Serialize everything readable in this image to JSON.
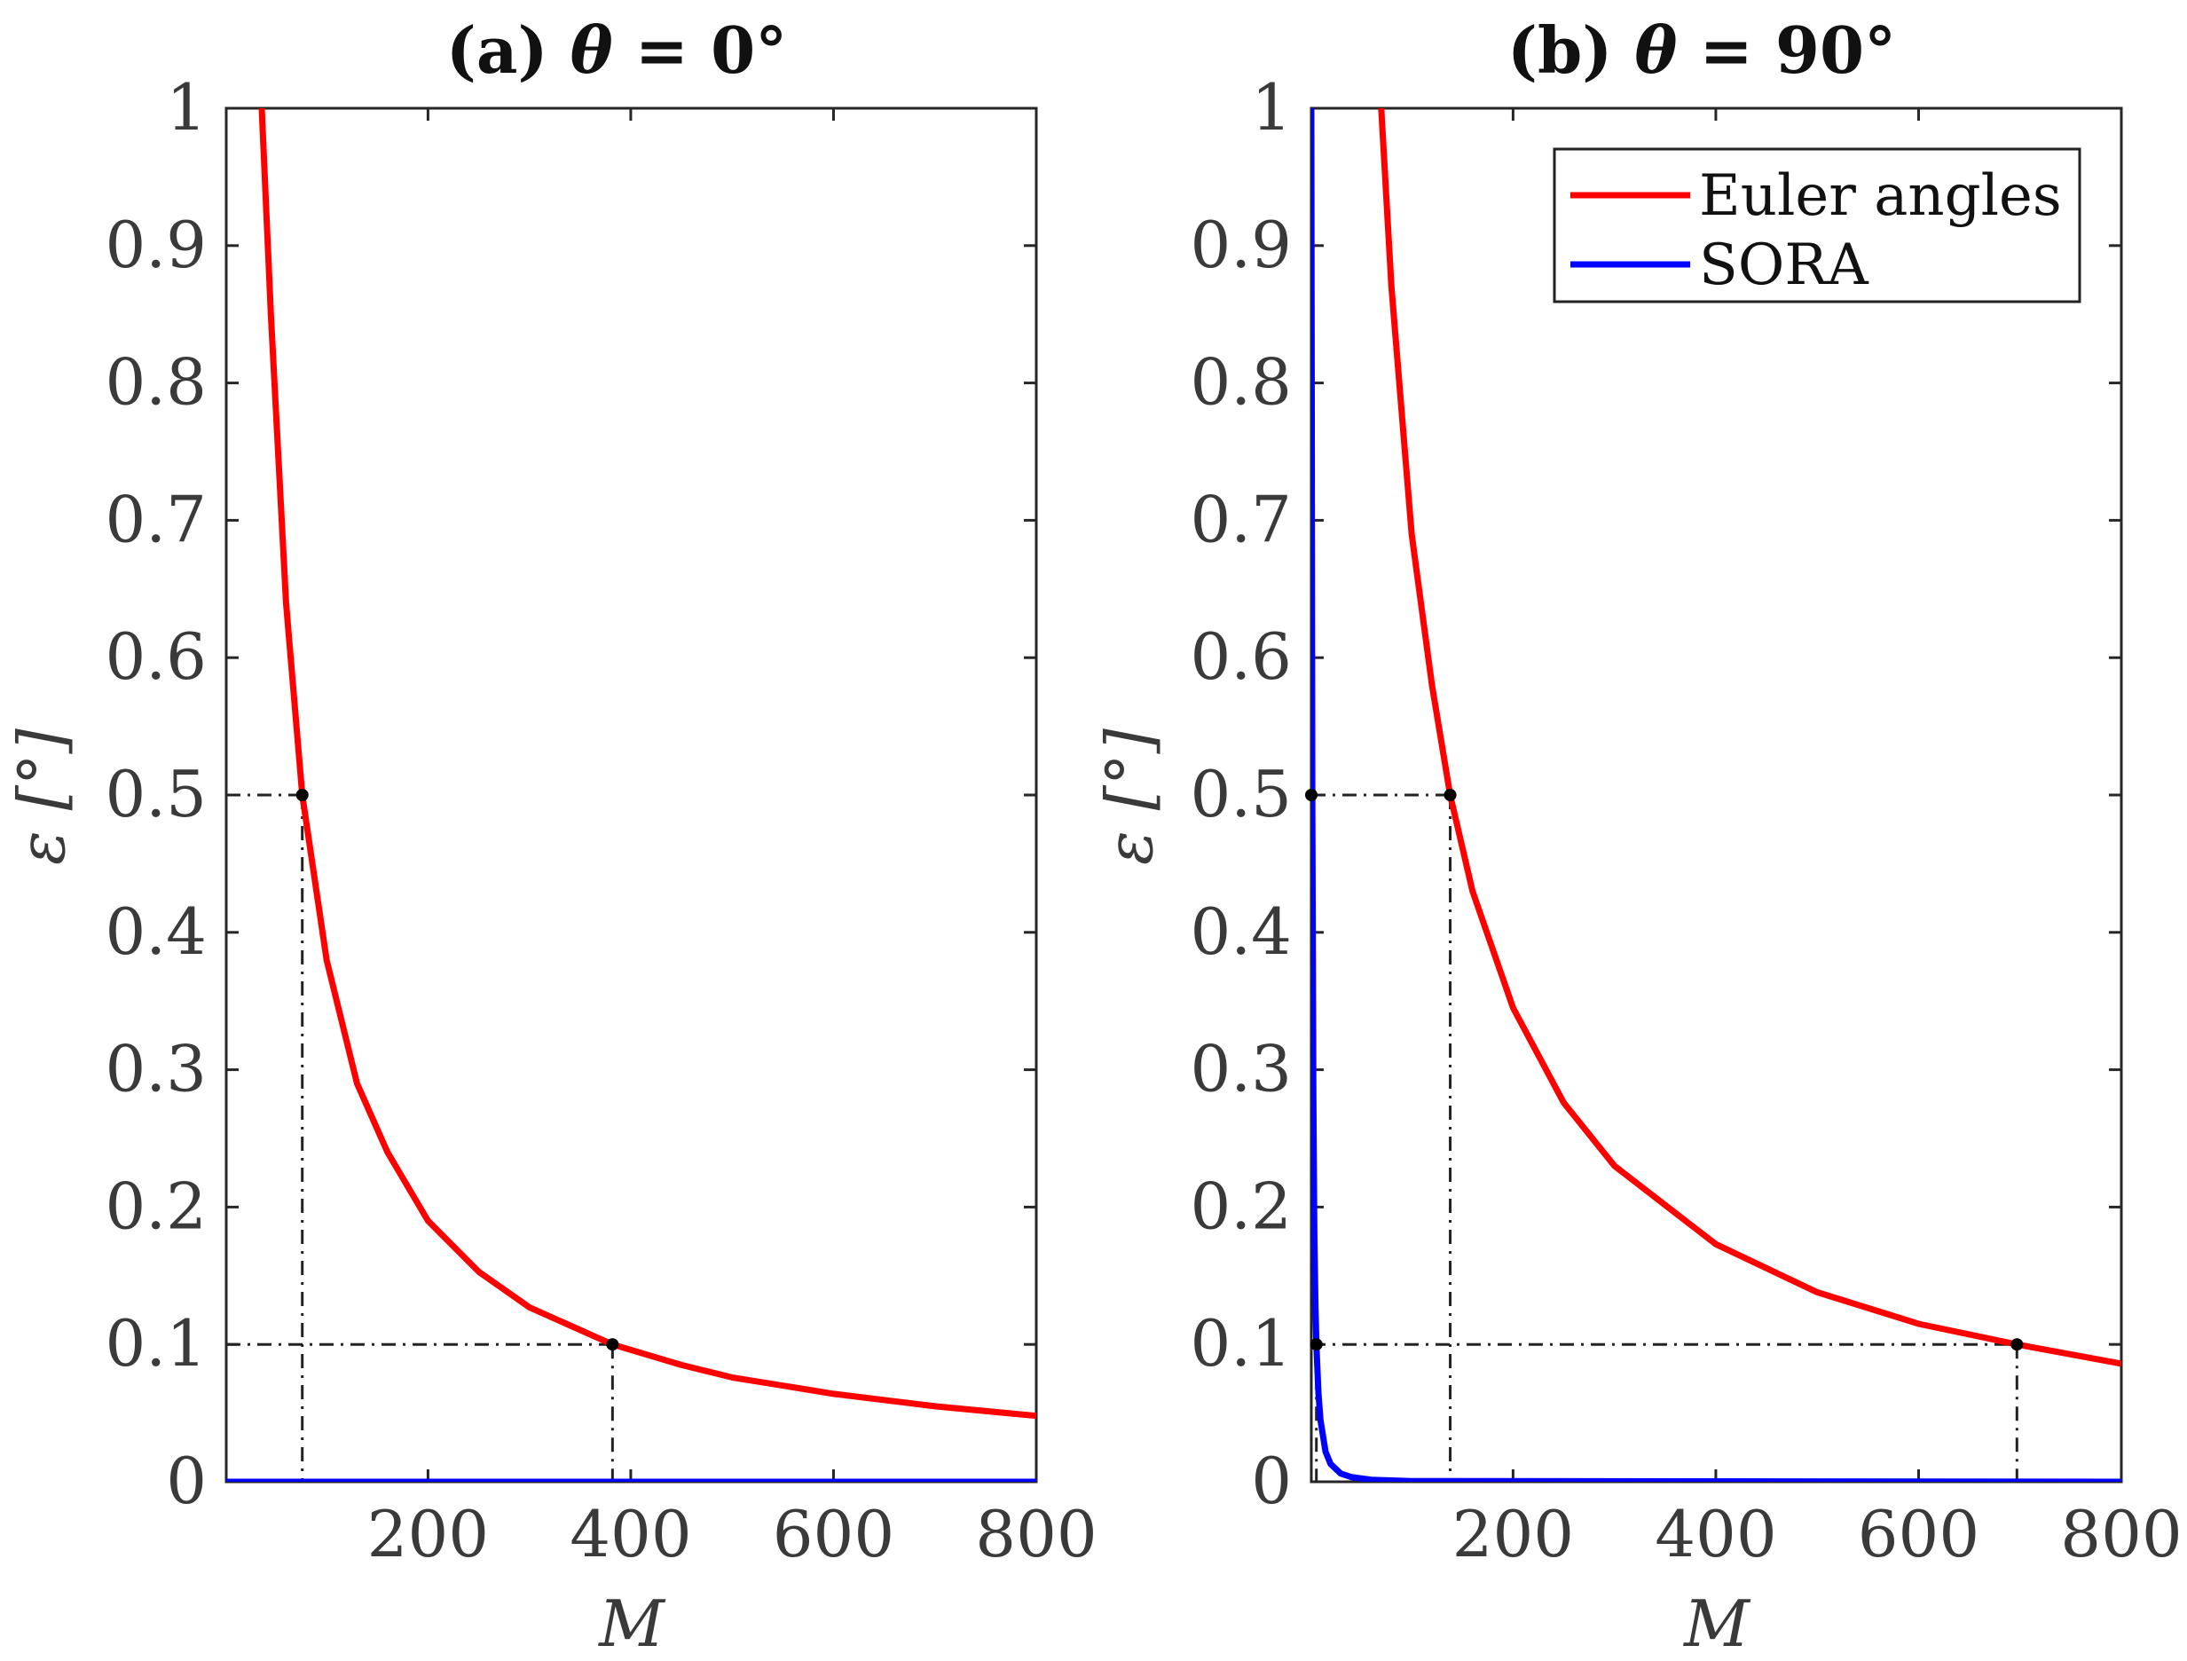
{
  "chart_data": [
    {
      "type": "line",
      "title": "(a) θ = 0°",
      "title_prefix": "(a) ",
      "title_theta": "θ",
      "title_suffix": " = 0°",
      "xlabel": "M",
      "ylabel": "ε [°]",
      "xlim": [
        1,
        800
      ],
      "ylim": [
        0,
        1
      ],
      "xticks": [
        200,
        400,
        600,
        800
      ],
      "yticks": [
        0,
        0.1,
        0.2,
        0.3,
        0.4,
        0.5,
        0.6,
        0.7,
        0.8,
        0.9,
        1
      ],
      "series": [
        {
          "name": "Euler angles",
          "color": "#ff0000",
          "x": [
            36,
            45,
            60,
            76,
            100,
            130,
            160,
            200,
            250,
            300,
            382,
            450,
            500,
            600,
            700,
            800
          ],
          "y": [
            1.0,
            0.85,
            0.64,
            0.5,
            0.38,
            0.29,
            0.24,
            0.19,
            0.153,
            0.127,
            0.1,
            0.085,
            0.076,
            0.064,
            0.055,
            0.048
          ]
        },
        {
          "name": "SORA",
          "color": "#0000ff",
          "x": [
            1,
            800
          ],
          "y": [
            0,
            0
          ]
        }
      ],
      "guides": [
        {
          "x": 76,
          "y": 0.5
        },
        {
          "x": 382,
          "y": 0.1
        }
      ]
    },
    {
      "type": "line",
      "title": "(b) θ = 90°",
      "title_prefix": "(b) ",
      "title_theta": "θ",
      "title_suffix": " = 90°",
      "xlabel": "M",
      "ylabel": "ε [°]",
      "xlim": [
        1,
        800
      ],
      "ylim": [
        0,
        1
      ],
      "xticks": [
        200,
        400,
        600,
        800
      ],
      "yticks": [
        0,
        0.1,
        0.2,
        0.3,
        0.4,
        0.5,
        0.6,
        0.7,
        0.8,
        0.9,
        1
      ],
      "legend_position": "top-right",
      "legend": [
        "Euler angles",
        "SORA"
      ],
      "series": [
        {
          "name": "Euler angles",
          "color": "#ff0000",
          "x": [
            70,
            80,
            100,
            120,
            138,
            160,
            200,
            250,
            300,
            400,
            500,
            600,
            697,
            800
          ],
          "y": [
            1.0,
            0.87,
            0.69,
            0.58,
            0.5,
            0.43,
            0.345,
            0.276,
            0.23,
            0.173,
            0.138,
            0.115,
            0.1,
            0.086
          ]
        },
        {
          "name": "SORA",
          "color": "#0000ff",
          "x": [
            1,
            2,
            3,
            4,
            5,
            6,
            8,
            10,
            15,
            20,
            30,
            40,
            60,
            100,
            800
          ],
          "y": [
            1.0,
            0.5,
            0.28,
            0.18,
            0.13,
            0.1,
            0.065,
            0.045,
            0.022,
            0.013,
            0.006,
            0.0035,
            0.0015,
            0.0005,
            0
          ]
        }
      ],
      "guides": [
        {
          "x": 1,
          "y": 0.5
        },
        {
          "x": 6,
          "y": 0.1
        },
        {
          "x": 138,
          "y": 0.5
        },
        {
          "x": 697,
          "y": 0.1
        }
      ]
    }
  ]
}
